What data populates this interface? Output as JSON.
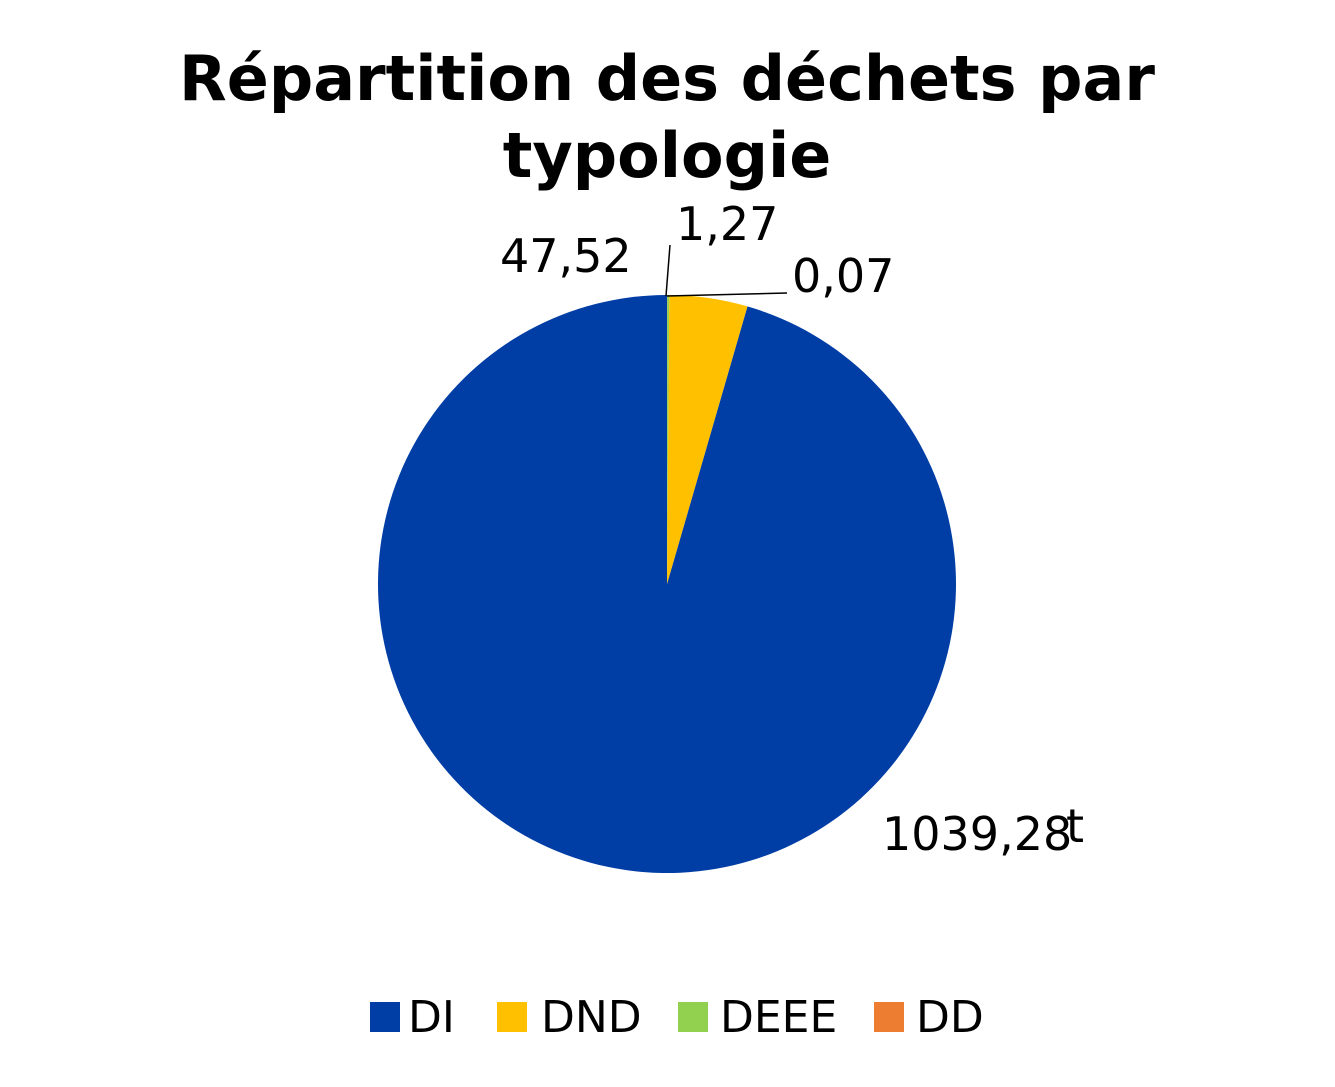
{
  "chart_data": {
    "type": "pie",
    "title_lines": [
      "Répartition des déchets par",
      "typologie"
    ],
    "unit": "t",
    "categories": [
      "DI",
      "DND",
      "DEEE",
      "DD"
    ],
    "values": [
      1039.28,
      47.52,
      1.27,
      0.07
    ],
    "value_labels": [
      "1039,28",
      "47,52",
      "1,27",
      "0,07"
    ],
    "colors": [
      "#003da5",
      "#ffc000",
      "#92d050",
      "#ed7d31"
    ],
    "start_angle": "12 o'clock",
    "direction": "counter-clockwise",
    "legend_position": "bottom"
  }
}
